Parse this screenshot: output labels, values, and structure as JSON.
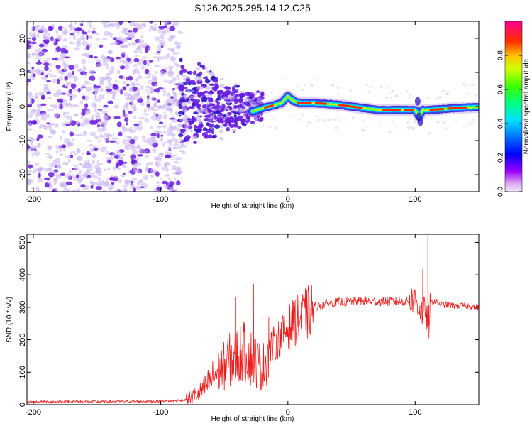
{
  "title": "S126.2025.295.14.12.C25",
  "chart_data": [
    {
      "type": "heatmap",
      "xlabel": "Height of straight line (km)",
      "ylabel": "Frequency (Hz)",
      "xlim": [
        -205,
        150
      ],
      "ylim": [
        -25,
        25
      ],
      "xticks": [
        -200,
        -100,
        0,
        100
      ],
      "yticks": [
        -20,
        -10,
        0,
        10,
        20
      ],
      "colorbar": {
        "label": "Normalized spectral amplitude",
        "range": [
          0,
          1
        ],
        "ticks": [
          "0.0",
          "0.2",
          "0.4",
          "0.6",
          "0.8"
        ],
        "tick_values": [
          0,
          0.2,
          0.4,
          0.6,
          0.8
        ]
      },
      "regions": [
        {
          "name": "noise",
          "x": [
            -205,
            -85
          ],
          "freq": [
            -25,
            25
          ],
          "amplitude": [
            0.02,
            0.2
          ]
        },
        {
          "name": "transition",
          "x": [
            -85,
            -20
          ],
          "freq": [
            -15,
            10
          ],
          "amplitude": [
            0.1,
            0.25
          ]
        },
        {
          "name": "signal-band",
          "x": [
            -20,
            150
          ],
          "amplitude": [
            0.3,
            1.0
          ]
        }
      ],
      "signal_ridge": {
        "x": [
          -28,
          -20,
          -15,
          -10,
          -5,
          0,
          5,
          10,
          20,
          30,
          40,
          50,
          60,
          70,
          80,
          90,
          100,
          103,
          106,
          110,
          120,
          130,
          140,
          150
        ],
        "freq": [
          -1.5,
          -0.5,
          0,
          0.5,
          1,
          3,
          1.5,
          1,
          1,
          0.8,
          0.5,
          0,
          -0.5,
          -1,
          -1,
          -1,
          -1,
          -3,
          -1,
          -1,
          -0.8,
          -0.5,
          -0.3,
          -0.2
        ]
      }
    },
    {
      "type": "line",
      "xlabel": "Height of straight line (km)",
      "ylabel": "SNR (10 * v/v)",
      "xlim": [
        -205,
        150
      ],
      "ylim": [
        0,
        525
      ],
      "xticks": [
        -200,
        -100,
        0,
        100
      ],
      "yticks": [
        0,
        100,
        200,
        300,
        400,
        500
      ],
      "series": [
        {
          "name": "SNR",
          "color": "#ee1c1c",
          "x": [
            -205,
            -190,
            -170,
            -150,
            -130,
            -110,
            -90,
            -80,
            -75,
            -70,
            -65,
            -60,
            -55,
            -50,
            -45,
            -40,
            -35,
            -30,
            -25,
            -20,
            -15,
            -10,
            -5,
            0,
            5,
            10,
            15,
            20,
            25,
            30,
            35,
            40,
            50,
            60,
            70,
            80,
            90,
            95,
            100,
            103,
            106,
            108,
            110,
            112,
            115,
            120,
            130,
            140,
            150
          ],
          "y": [
            8,
            9,
            10,
            9,
            10,
            10,
            12,
            15,
            25,
            35,
            55,
            80,
            100,
            120,
            140,
            155,
            160,
            150,
            135,
            110,
            170,
            190,
            215,
            235,
            255,
            265,
            280,
            300,
            305,
            312,
            312,
            315,
            318,
            320,
            318,
            318,
            318,
            320,
            325,
            300,
            280,
            300,
            240,
            310,
            320,
            310,
            305,
            305,
            300
          ],
          "spikes": [
            {
              "x": -41,
              "y": 330
            },
            {
              "x": -27,
              "y": 372
            },
            {
              "x": -15,
              "y": 270
            },
            {
              "x": 11,
              "y": 315
            },
            {
              "x": 99,
              "y": 375
            },
            {
              "x": 106,
              "y": 418
            },
            {
              "x": 110,
              "y": 525
            },
            {
              "x": 110.8,
              "y": 205
            }
          ]
        }
      ]
    }
  ],
  "colors": {
    "signal": "#ee1c1c",
    "noise": "#6a1fe0",
    "noise_light": "#c8b2f2"
  }
}
